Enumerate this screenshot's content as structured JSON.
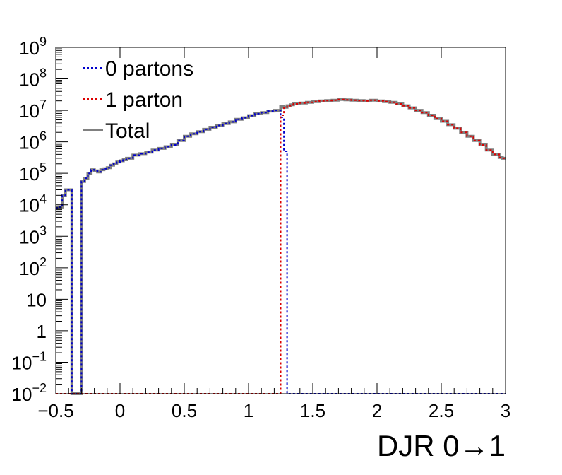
{
  "chart_data": {
    "type": "line",
    "step": true,
    "xlabel": "DJR 0→1",
    "ylabel": "",
    "title": "",
    "xlim": [
      -0.5,
      3
    ],
    "ylim": [
      0.01,
      1000000000
    ],
    "yscale": "log",
    "xticks": [
      {
        "value": -0.5,
        "label": "−0.5"
      },
      {
        "value": 0,
        "label": "0"
      },
      {
        "value": 0.5,
        "label": "0.5"
      },
      {
        "value": 1,
        "label": "1"
      },
      {
        "value": 1.5,
        "label": "1.5"
      },
      {
        "value": 2,
        "label": "2"
      },
      {
        "value": 2.5,
        "label": "2.5"
      },
      {
        "value": 3,
        "label": "3"
      }
    ],
    "yticks": [
      {
        "value": 0.01,
        "base": "10",
        "exp": "−2"
      },
      {
        "value": 0.1,
        "base": "10",
        "exp": "−1"
      },
      {
        "value": 1,
        "base": "1",
        "exp": ""
      },
      {
        "value": 10,
        "base": "10",
        "exp": ""
      },
      {
        "value": 100,
        "base": "10",
        "exp": "2"
      },
      {
        "value": 1000,
        "base": "10",
        "exp": "3"
      },
      {
        "value": 10000,
        "base": "10",
        "exp": "4"
      },
      {
        "value": 100000,
        "base": "10",
        "exp": "5"
      },
      {
        "value": 1000000,
        "base": "10",
        "exp": "6"
      },
      {
        "value": 10000000,
        "base": "10",
        "exp": "7"
      },
      {
        "value": 100000000,
        "base": "10",
        "exp": "8"
      },
      {
        "value": 1000000000,
        "base": "10",
        "exp": "9"
      }
    ],
    "legend_position": "top-left",
    "series": [
      {
        "name": "0 partons",
        "color": "#0000cc",
        "style": "dotted",
        "x": [
          -0.5,
          -0.475,
          -0.45,
          -0.425,
          -0.4,
          -0.375,
          -0.35,
          -0.325,
          -0.3,
          -0.275,
          -0.25,
          -0.225,
          -0.2,
          -0.175,
          -0.15,
          -0.125,
          -0.1,
          -0.075,
          -0.05,
          -0.025,
          0,
          0.025,
          0.05,
          0.1,
          0.15,
          0.2,
          0.25,
          0.3,
          0.35,
          0.4,
          0.45,
          0.5,
          0.55,
          0.6,
          0.65,
          0.7,
          0.75,
          0.8,
          0.85,
          0.9,
          0.95,
          1.0,
          1.05,
          1.1,
          1.15,
          1.2,
          1.25,
          1.275,
          1.3,
          1.325
        ],
        "y": [
          8000,
          8500,
          20000,
          30000,
          30000,
          0.01,
          0.01,
          0.01,
          55000,
          70000,
          100000,
          130000,
          120000,
          110000,
          130000,
          140000,
          150000,
          180000,
          200000,
          230000,
          250000,
          270000,
          300000,
          380000,
          420000,
          470000,
          550000,
          620000,
          700000,
          800000,
          1100000,
          1500000,
          1800000,
          2100000,
          2500000,
          2900000,
          3300000,
          3800000,
          4300000,
          5200000,
          5800000,
          6800000,
          7800000,
          8500000,
          9500000,
          10000000,
          6000000,
          500000,
          0.01,
          0.01
        ]
      },
      {
        "name": "1 parton",
        "color": "#dd0000",
        "style": "dotted",
        "x": [
          -0.5,
          1.2,
          1.25,
          1.275,
          1.3,
          1.325,
          1.35,
          1.4,
          1.45,
          1.5,
          1.55,
          1.6,
          1.65,
          1.7,
          1.75,
          1.8,
          1.85,
          1.9,
          1.95,
          2.0,
          2.05,
          2.1,
          2.15,
          2.2,
          2.25,
          2.3,
          2.35,
          2.4,
          2.45,
          2.5,
          2.55,
          2.6,
          2.65,
          2.7,
          2.75,
          2.8,
          2.85,
          2.9,
          2.95,
          2.975,
          3.0
        ],
        "y": [
          0.01,
          0.01,
          7000000,
          12000000,
          14000000,
          15000000,
          16000000,
          17000000,
          18000000,
          19000000,
          20000000,
          20500000,
          21000000,
          22000000,
          21500000,
          21000000,
          20500000,
          20000000,
          21000000,
          20000000,
          19000000,
          18000000,
          16000000,
          14000000,
          12000000,
          10000000,
          8500000,
          7000000,
          5500000,
          4500000,
          3500000,
          2700000,
          2000000,
          1500000,
          1100000,
          800000,
          550000,
          400000,
          320000,
          300000,
          300000
        ]
      },
      {
        "name": "Total",
        "color": "#808080",
        "style": "solid",
        "x": [
          -0.5,
          -0.475,
          -0.45,
          -0.425,
          -0.4,
          -0.375,
          -0.35,
          -0.325,
          -0.3,
          -0.275,
          -0.25,
          -0.225,
          -0.2,
          -0.175,
          -0.15,
          -0.125,
          -0.1,
          -0.075,
          -0.05,
          -0.025,
          0,
          0.025,
          0.05,
          0.1,
          0.15,
          0.2,
          0.25,
          0.3,
          0.35,
          0.4,
          0.45,
          0.5,
          0.55,
          0.6,
          0.65,
          0.7,
          0.75,
          0.8,
          0.85,
          0.9,
          0.95,
          1.0,
          1.05,
          1.1,
          1.15,
          1.2,
          1.25,
          1.275,
          1.3,
          1.325,
          1.35,
          1.4,
          1.45,
          1.5,
          1.55,
          1.6,
          1.65,
          1.7,
          1.75,
          1.8,
          1.85,
          1.9,
          1.95,
          2.0,
          2.05,
          2.1,
          2.15,
          2.2,
          2.25,
          2.3,
          2.35,
          2.4,
          2.45,
          2.5,
          2.55,
          2.6,
          2.65,
          2.7,
          2.75,
          2.8,
          2.85,
          2.9,
          2.95,
          2.975,
          3.0
        ],
        "y": [
          8000,
          8500,
          20000,
          30000,
          30000,
          0.01,
          0.01,
          0.01,
          55000,
          70000,
          100000,
          130000,
          120000,
          110000,
          130000,
          140000,
          150000,
          180000,
          200000,
          230000,
          250000,
          270000,
          300000,
          380000,
          420000,
          470000,
          550000,
          620000,
          700000,
          800000,
          1100000,
          1500000,
          1800000,
          2100000,
          2500000,
          2900000,
          3300000,
          3800000,
          4300000,
          5200000,
          5800000,
          6800000,
          7800000,
          8500000,
          9500000,
          10000000,
          13000000,
          12500000,
          14000000,
          15000000,
          16000000,
          17000000,
          18000000,
          19000000,
          20000000,
          20500000,
          21000000,
          22000000,
          21500000,
          21000000,
          20500000,
          20000000,
          21000000,
          20000000,
          19000000,
          18000000,
          16000000,
          14000000,
          12000000,
          10000000,
          8500000,
          7000000,
          5500000,
          4500000,
          3500000,
          2700000,
          2000000,
          1500000,
          1100000,
          800000,
          550000,
          400000,
          320000,
          300000,
          300000
        ]
      }
    ]
  }
}
